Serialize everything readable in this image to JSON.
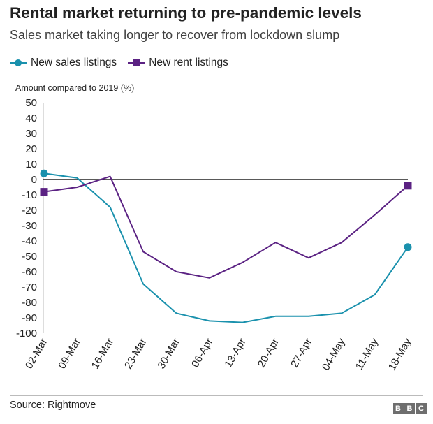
{
  "header": {
    "title": "Rental market returning to pre-pandemic levels",
    "subtitle": "Sales market taking longer to recover from lockdown slump"
  },
  "footer": {
    "source": "Source: Rightmove",
    "logo_letters": [
      "B",
      "B",
      "C"
    ]
  },
  "chart_data": {
    "type": "line",
    "title": "Rental market returning to pre-pandemic levels",
    "subtitle": "Sales market taking longer to recover from lockdown slump",
    "ylabel": "Amount compared to 2019 (%)",
    "xlabel": "",
    "ylim": [
      -100,
      50
    ],
    "yticks": [
      50,
      40,
      30,
      20,
      10,
      0,
      -10,
      -20,
      -30,
      -40,
      -50,
      -60,
      -70,
      -80,
      -90,
      -100
    ],
    "grid": false,
    "legend_position": "top-left",
    "categories": [
      "02-Mar",
      "09-Mar",
      "16-Mar",
      "23-Mar",
      "30-Mar",
      "06-Apr",
      "13-Apr",
      "20-Apr",
      "27-Apr",
      "04-May",
      "11-May",
      "18-May"
    ],
    "series": [
      {
        "name": "New sales listings",
        "color": "#1a91ad",
        "marker": "circle",
        "values": [
          4,
          1,
          -18,
          -68,
          -87,
          -92,
          -93,
          -89,
          -89,
          -87,
          -75,
          -44
        ]
      },
      {
        "name": "New rent listings",
        "color": "#5b2283",
        "marker": "square",
        "values": [
          -8,
          -5,
          2,
          -47,
          -60,
          -64,
          -54,
          -41,
          -51,
          -41,
          -23,
          -4
        ]
      }
    ]
  }
}
